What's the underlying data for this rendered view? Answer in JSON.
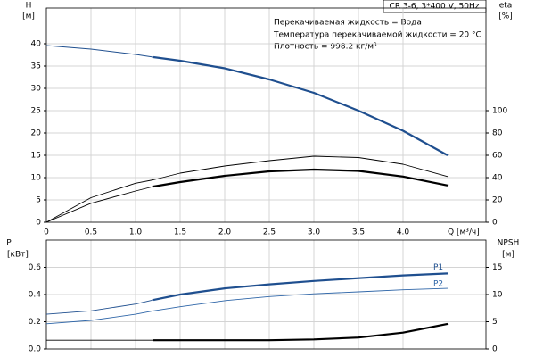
{
  "chart_data": [
    {
      "type": "line",
      "subtitle": "CR 3-6, 3*400 V, 50Hz",
      "annotations": [
        "Перекачиваемая жидкость = Вода",
        "Температура перекачиваемой жидкости = 20 °C",
        "Плотность = 998.2 кг/м³"
      ],
      "ylabel": "H",
      "yunit": "[м]",
      "y2label": "eta",
      "y2unit": "[%]",
      "xlabel": "Q [м³/ч]",
      "x": [
        0,
        0.5,
        1.0,
        1.2,
        1.5,
        2.0,
        2.5,
        3.0,
        3.5,
        4.0,
        4.5
      ],
      "xlim": [
        0,
        4.93
      ],
      "xticks": [
        0,
        0.5,
        {
          "value": 1,
          "label": "1.0"
        },
        1.5,
        {
          "value": 2,
          "label": "2.0"
        },
        2.5,
        {
          "value": 3,
          "label": "3.0"
        },
        3.5,
        {
          "value": 4,
          "label": "4.0"
        }
      ],
      "ylim": [
        0,
        48
      ],
      "yticks": [
        0,
        5,
        10,
        15,
        20,
        25,
        30,
        35,
        40
      ],
      "y2lim": [
        0,
        192
      ],
      "y2ticks": [
        0,
        20,
        40,
        60,
        80,
        100
      ],
      "grid": true,
      "series": [
        {
          "color": "#1f4f8f",
          "axis": "y",
          "bold_from": 1.2,
          "values": [
            39.6,
            38.8,
            37.6,
            37.0,
            36.2,
            34.5,
            32.0,
            29.0,
            25.0,
            20.5,
            15.0
          ]
        },
        {
          "color": "#000000",
          "axis": "y2",
          "values": [
            0,
            22,
            35,
            38,
            44,
            50.4,
            55.2,
            59.2,
            58,
            52,
            41
          ]
        },
        {
          "color": "#000000",
          "axis": "y2",
          "bold_from": 1.2,
          "values": [
            0,
            17,
            28,
            32,
            36,
            41.6,
            45.6,
            47.2,
            46,
            41,
            33
          ]
        }
      ]
    },
    {
      "type": "line",
      "ylabel": "P",
      "yunit": "[кВт]",
      "y2label": "NPSH",
      "y2unit": "[м]",
      "x": [
        0,
        0.5,
        1.0,
        1.2,
        1.5,
        2.0,
        2.5,
        3.0,
        3.5,
        4.0,
        4.5
      ],
      "xlim": [
        0,
        4.93
      ],
      "ylim": [
        0,
        0.8
      ],
      "yticks": [
        {
          "value": 0,
          "label": "0.0"
        },
        0.2,
        0.4,
        0.6
      ],
      "y2lim": [
        0,
        20
      ],
      "y2ticks": [
        0,
        5,
        10,
        15
      ],
      "grid": true,
      "series": [
        {
          "name": "P1",
          "color": "#1f4f8f",
          "axis": "y",
          "bold_from": 1.2,
          "values": [
            0.255,
            0.28,
            0.33,
            0.36,
            0.4,
            0.445,
            0.475,
            0.5,
            0.52,
            0.54,
            0.555
          ]
        },
        {
          "name": "P2",
          "color": "#2f66a8",
          "axis": "y",
          "values": [
            0.185,
            0.21,
            0.255,
            0.28,
            0.31,
            0.355,
            0.385,
            0.405,
            0.42,
            0.435,
            0.445
          ]
        },
        {
          "color": "#000000",
          "axis": "y2",
          "bold_from": 1.2,
          "values": [
            1.6,
            1.6,
            1.6,
            1.6,
            1.6,
            1.6,
            1.6,
            1.75,
            2.1,
            3.0,
            4.6
          ]
        }
      ]
    }
  ]
}
